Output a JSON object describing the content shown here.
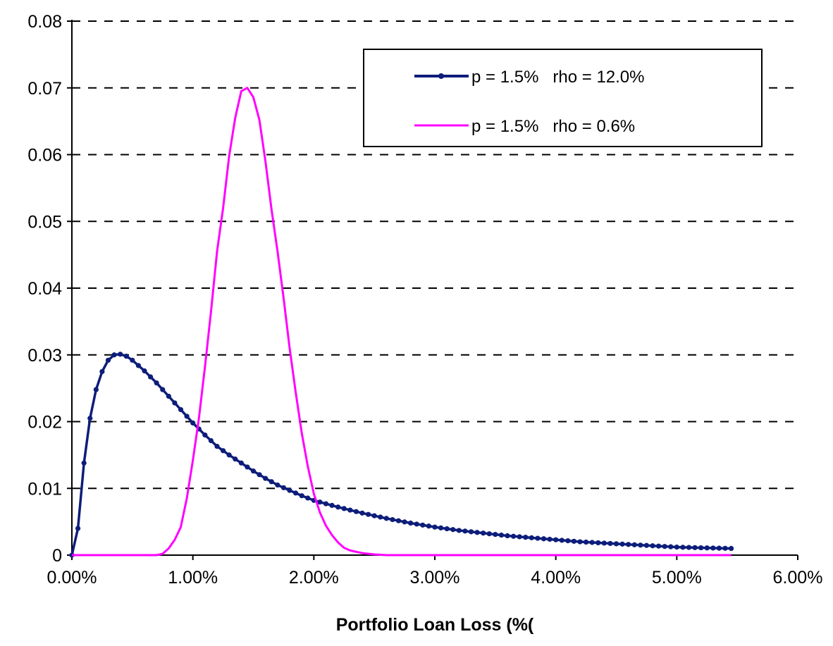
{
  "chart_data": {
    "type": "line",
    "title": "",
    "xlabel": "Portfolio Loan Loss (%(",
    "ylabel": "",
    "xlim": [
      0,
      0.06
    ],
    "ylim": [
      0,
      0.08
    ],
    "x_tick_values": [
      0,
      0.01,
      0.02,
      0.03,
      0.04,
      0.05,
      0.06
    ],
    "x_tick_labels": [
      "0.00%",
      "1.00%",
      "2.00%",
      "3.00%",
      "4.00%",
      "5.00%",
      "6.00%"
    ],
    "y_tick_values": [
      0,
      0.01,
      0.02,
      0.03,
      0.04,
      0.05,
      0.06,
      0.07,
      0.08
    ],
    "y_tick_labels": [
      "0",
      "0.01",
      "0.02",
      "0.03",
      "0.04",
      "0.05",
      "0.06",
      "0.07",
      "0.08"
    ],
    "grid": "horizontal-dashed",
    "legend_position": "top-right",
    "series": [
      {
        "name": "p = 1.5%   rho = 12.0%",
        "color": "#0d1d7a",
        "markers": true,
        "anchor_x": [
          0,
          0.0005,
          0.001,
          0.0015,
          0.002,
          0.0025,
          0.003,
          0.0035,
          0.004,
          0.0045,
          0.005,
          0.006,
          0.007,
          0.008,
          0.009,
          0.01,
          0.011,
          0.012,
          0.013,
          0.014,
          0.015,
          0.016,
          0.017,
          0.018,
          0.019,
          0.02,
          0.022,
          0.024,
          0.026,
          0.028,
          0.03,
          0.032,
          0.034,
          0.036,
          0.038,
          0.04,
          0.042,
          0.044,
          0.046,
          0.048,
          0.05,
          0.052,
          0.0545
        ],
        "anchor_y": [
          0,
          0.004,
          0.0138,
          0.0205,
          0.0248,
          0.0275,
          0.0292,
          0.03,
          0.0301,
          0.0298,
          0.0292,
          0.0276,
          0.0258,
          0.0238,
          0.0218,
          0.0198,
          0.018,
          0.0163,
          0.015,
          0.0138,
          0.0126,
          0.0115,
          0.0105,
          0.0097,
          0.0089,
          0.0082,
          0.0072,
          0.0063,
          0.0055,
          0.0048,
          0.0042,
          0.0037,
          0.0033,
          0.0029,
          0.0026,
          0.0023,
          0.002,
          0.0018,
          0.0016,
          0.0014,
          0.0012,
          0.0011,
          0.001
        ],
        "marker_step": 0.0005
      },
      {
        "name": "p = 1.5%   rho = 0.6%",
        "color": "#ff00ff",
        "markers": false,
        "x": [
          0,
          0.007,
          0.0075,
          0.008,
          0.0085,
          0.009,
          0.0095,
          0.01,
          0.0105,
          0.011,
          0.0115,
          0.012,
          0.0125,
          0.013,
          0.0135,
          0.014,
          0.0145,
          0.015,
          0.0155,
          0.016,
          0.0165,
          0.017,
          0.0175,
          0.018,
          0.0185,
          0.019,
          0.0195,
          0.02,
          0.0205,
          0.021,
          0.0215,
          0.022,
          0.0225,
          0.023,
          0.024,
          0.025,
          0.026,
          0.027,
          0.028,
          0.03,
          0.035,
          0.04,
          0.045,
          0.05,
          0.0545
        ],
        "y": [
          0,
          0,
          0.0002,
          0.001,
          0.0023,
          0.0042,
          0.0085,
          0.0142,
          0.0205,
          0.0282,
          0.0365,
          0.0455,
          0.052,
          0.0598,
          0.0655,
          0.0695,
          0.07,
          0.0686,
          0.0652,
          0.059,
          0.0518,
          0.0455,
          0.0385,
          0.031,
          0.0244,
          0.0183,
          0.0133,
          0.0092,
          0.0064,
          0.0044,
          0.003,
          0.0019,
          0.0011,
          0.0007,
          0.0003,
          0.0001,
          0,
          0,
          0,
          0,
          0,
          0,
          0,
          0,
          0
        ]
      }
    ]
  }
}
